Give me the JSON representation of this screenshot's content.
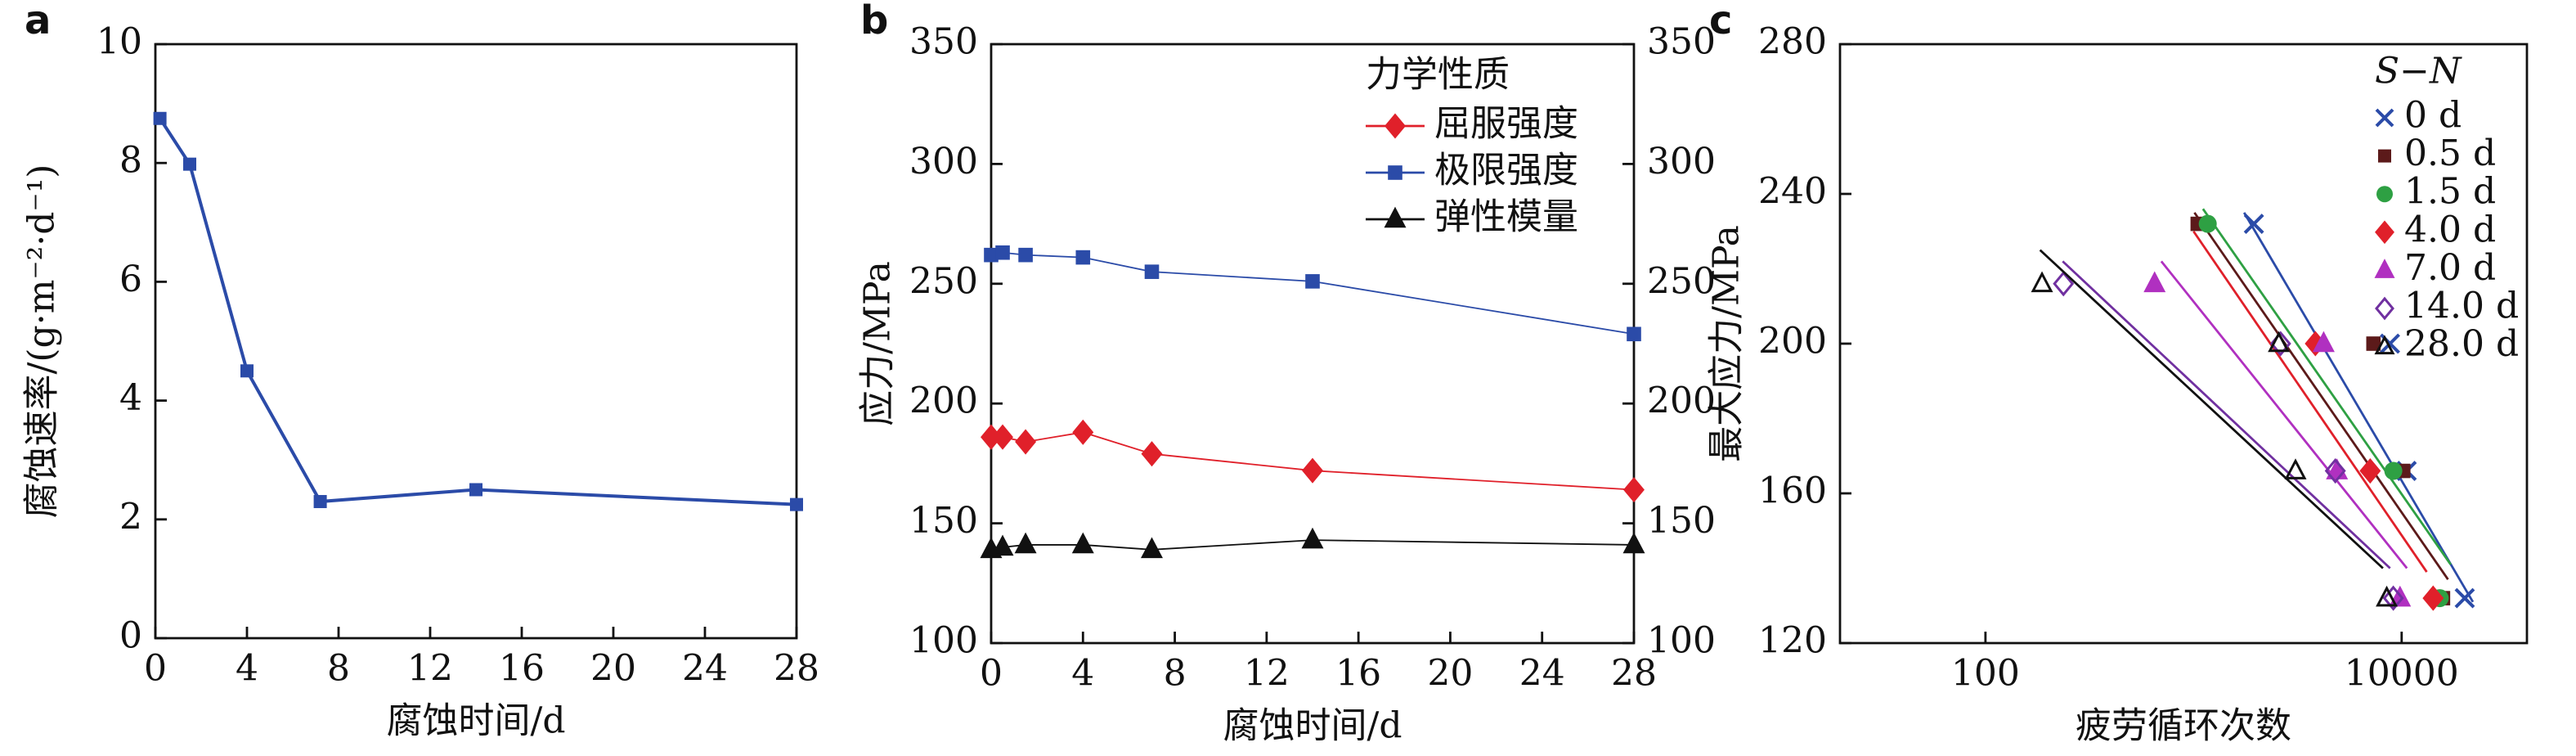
{
  "chart_data": [
    {
      "type": "line",
      "label": "a",
      "xlabel": "腐蚀时间/d",
      "ylabel": "腐蚀速率/(g·m⁻²·d⁻¹)",
      "x": [
        0.2,
        1.5,
        4,
        7.2,
        14,
        28
      ],
      "series": [
        {
          "color": "#2b4ba8",
          "marker": "square",
          "values": [
            8.75,
            7.98,
            4.5,
            2.3,
            2.5,
            2.25
          ]
        }
      ],
      "xlim": [
        0,
        28
      ],
      "xticks": [
        0,
        4,
        8,
        12,
        16,
        20,
        24,
        28
      ],
      "ylim": [
        0,
        10
      ],
      "yticks": [
        0,
        2,
        4,
        6,
        8,
        10
      ]
    },
    {
      "type": "line",
      "label": "b",
      "xlabel": "腐蚀时间/d",
      "ylabel": "应力/MPa",
      "legend_title": "力学性质",
      "x": [
        0,
        0.5,
        1.5,
        4,
        7,
        14,
        28
      ],
      "series": [
        {
          "name": "屈服强度",
          "color": "#e0202a",
          "marker": "diamond",
          "values": [
            186,
            186,
            184,
            188,
            179,
            172,
            164
          ]
        },
        {
          "name": "极限强度",
          "color": "#2b4ba8",
          "marker": "square",
          "values": [
            262,
            263,
            262,
            261,
            255,
            251,
            229
          ]
        },
        {
          "name": "弹性模量",
          "color": "#111111",
          "marker": "triangle",
          "values": [
            139,
            140,
            141,
            141,
            139,
            143,
            141
          ]
        }
      ],
      "xlim": [
        0,
        28
      ],
      "xticks": [
        0,
        4,
        8,
        12,
        16,
        20,
        24,
        28
      ],
      "ylim": [
        100,
        350
      ],
      "yticks": [
        100,
        150,
        200,
        250,
        300,
        350
      ],
      "y2lim": [
        100,
        350
      ],
      "y2ticks": [
        100,
        150,
        200,
        250,
        300,
        350
      ]
    },
    {
      "type": "scatter",
      "label": "c",
      "xlabel": "疲劳循环次数",
      "ylabel": "最大应力/MPa",
      "legend_title": "S−N",
      "log_x": true,
      "xlim": [
        20,
        40000
      ],
      "xticks": [
        100,
        10000
      ],
      "ylim": [
        120,
        280
      ],
      "yticks": [
        120,
        160,
        200,
        240,
        280
      ],
      "series": [
        {
          "name": "0 d",
          "color": "#2b4ba8",
          "marker": "x",
          "x": [
            1950,
            8790,
            10570,
            20100
          ],
          "values": [
            232,
            200,
            166,
            132
          ],
          "fit": {
            "x": [
              1750,
              22000
            ],
            "y": [
              235,
              131
            ]
          }
        },
        {
          "name": "0.5 d",
          "color": "#5c1a1a",
          "marker": "square",
          "x": [
            1047,
            7320,
            10180,
            15800
          ],
          "values": [
            232,
            200,
            166,
            132
          ],
          "fit": {
            "x": [
              1010,
              16700
            ],
            "y": [
              235,
              137
            ]
          }
        },
        {
          "name": "1.5 d",
          "color": "#2ea043",
          "marker": "circle",
          "x": [
            1170,
            9120,
            15240
          ],
          "values": [
            232,
            166,
            132
          ],
          "fit": {
            "x": [
              1110,
              17200
            ],
            "y": [
              236,
              141
            ]
          }
        },
        {
          "name": "4.0 d",
          "color": "#e0202a",
          "marker": "diamond",
          "x": [
            3850,
            7060,
            14170
          ],
          "values": [
            200,
            166,
            132
          ],
          "fit": {
            "x": [
              1000,
              13200
            ],
            "y": [
              230,
              139
            ]
          }
        },
        {
          "name": "7.0 d",
          "color": "#b030c0",
          "marker": "triangle",
          "x": [
            650,
            4220,
            4890,
            9820
          ],
          "values": [
            216,
            200,
            166,
            132
          ],
          "fit": {
            "x": [
              700,
              10600
            ],
            "y": [
              222,
              140
            ]
          }
        },
        {
          "name": "14.0 d",
          "color": "#7030a0",
          "marker": "diamond-open",
          "x": [
            237,
            2620,
            4800,
            9120
          ],
          "values": [
            216,
            200,
            166,
            132
          ],
          "fit": {
            "x": [
              235,
              8800
            ],
            "y": [
              222,
              140
            ]
          }
        },
        {
          "name": "28.0 d",
          "color": "#111111",
          "marker": "triangle-open",
          "x": [
            187,
            2570,
            3090,
            8480
          ],
          "values": [
            216,
            200,
            166,
            132
          ],
          "fit": {
            "x": [
              183,
              8130
            ],
            "y": [
              225,
              140
            ]
          }
        }
      ]
    }
  ]
}
